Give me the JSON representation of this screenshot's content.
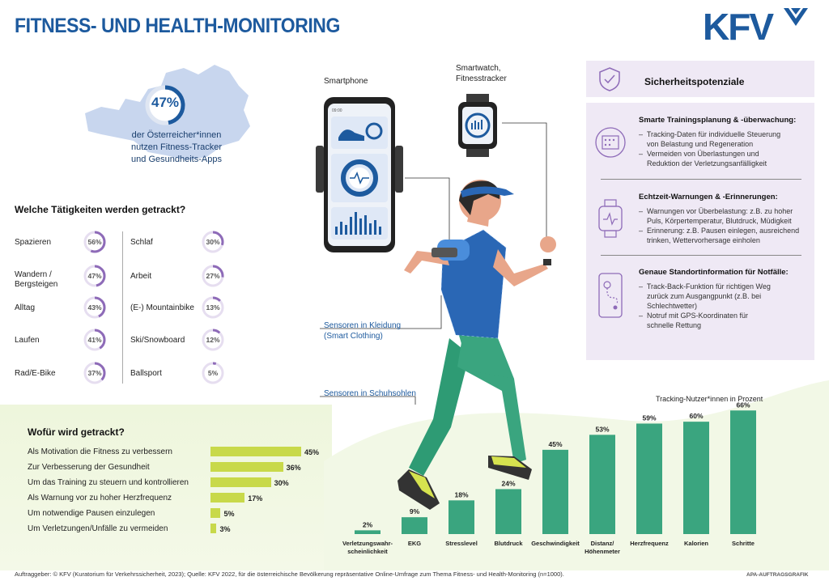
{
  "header": {
    "title": "FITNESS- UND HEALTH-MONITORING",
    "logo": "KFV"
  },
  "stat": {
    "percent": "47%",
    "percent_value": 0.47,
    "text_line1": "der Österreicher*innen",
    "text_line2": "nutzen Fitness-Tracker",
    "text_line3": "und Gesundheits-Apps"
  },
  "activities": {
    "heading": "Welche Tätigkeiten werden getrackt?",
    "left": [
      {
        "label": "Spazieren",
        "label2": "",
        "value": "56%",
        "pct": 56
      },
      {
        "label": "Wandern /",
        "label2": "Bergsteigen",
        "value": "47%",
        "pct": 47
      },
      {
        "label": "Alltag",
        "label2": "",
        "value": "43%",
        "pct": 43
      },
      {
        "label": "Laufen",
        "label2": "",
        "value": "41%",
        "pct": 41
      },
      {
        "label": "Rad/E-Bike",
        "label2": "",
        "value": "37%",
        "pct": 37
      }
    ],
    "right": [
      {
        "label": "Schlaf",
        "value": "30%",
        "pct": 30
      },
      {
        "label": "Arbeit",
        "value": "27%",
        "pct": 27
      },
      {
        "label": "(E-) Mountainbike",
        "value": "13%",
        "pct": 13
      },
      {
        "label": "Ski/Snowboard",
        "value": "12%",
        "pct": 12
      },
      {
        "label": "Ballsport",
        "value": "5%",
        "pct": 5
      }
    ]
  },
  "why": {
    "heading": "Wofür wird getrackt?",
    "items": [
      {
        "label": "Als Motivation die Fitness zu verbessern",
        "value": "45%",
        "pct": 45
      },
      {
        "label": "Zur Verbesserung der Gesundheit",
        "value": "36%",
        "pct": 36
      },
      {
        "label": "Um das Training zu steuern und kontrollieren",
        "value": "30%",
        "pct": 30
      },
      {
        "label": "Als Warnung vor zu hoher Herzfrequenz",
        "value": "17%",
        "pct": 17
      },
      {
        "label": "Um notwendige Pausen einzulegen",
        "value": "5%",
        "pct": 5
      },
      {
        "label": "Um Verletzungen/Unfälle zu vermeiden",
        "value": "3%",
        "pct": 3
      }
    ]
  },
  "devices": {
    "smartphone": "Smartphone",
    "smartwatch_line1": "Smartwatch,",
    "smartwatch_line2": "Fitnesstracker",
    "sensors_clothing_line1": "Sensoren in Kleidung",
    "sensors_clothing_line2": "(Smart Clothing)",
    "sensors_shoes": "Sensoren in Schuhsohlen",
    "phone_time": "09:00"
  },
  "safety": {
    "heading": "Sicherheitspotenziale",
    "sections": [
      {
        "title": "Smarte Trainingsplanung & -überwachung:",
        "items": [
          [
            "–  Tracking-Daten für individuelle Steuerung",
            "    von Belastung und Regeneration"
          ],
          [
            "–  Vermeiden von Überlastungen und",
            "    Reduktion der Verletzungsanfälligkeit"
          ]
        ]
      },
      {
        "title": "Echtzeit-Warnungen & -Erinnerungen:",
        "items": [
          [
            "–  Warnungen vor Überbelastung: z.B. zu hoher",
            "    Puls, Körpertemperatur, Blutdruck, Müdigkeit"
          ],
          [
            "–  Erinnerung: z.B. Pausen einlegen, ausreichend",
            "    trinken, Wettervorhersage einholen"
          ]
        ]
      },
      {
        "title": "Genaue Standortinformation für Notfälle:",
        "items": [
          [
            "–  Track-Back-Funktion für richtigen Weg",
            "    zurück zum Ausgangpunkt (z.B. bei",
            "    Schlechtwetter)"
          ],
          [
            "–  Notruf mit GPS-Koordinaten für",
            "    schnelle Rettung"
          ]
        ]
      }
    ]
  },
  "chart_data": {
    "type": "bar",
    "title": "Tracking-Nutzer*innen in Prozent",
    "categories": [
      "Verletzungswahr-scheinlichkeit",
      "EKG",
      "Stresslevel",
      "Blutdruck",
      "Geschwindigkeit",
      "Distanz/ Höhenmeter",
      "Herzfrequenz",
      "Kalorien",
      "Schritte"
    ],
    "category_lines": [
      [
        "Verletzungswahr-",
        "scheinlichkeit"
      ],
      [
        "EKG"
      ],
      [
        "Stresslevel"
      ],
      [
        "Blutdruck"
      ],
      [
        "Geschwindigkeit"
      ],
      [
        "Distanz/",
        "Höhenmeter"
      ],
      [
        "Herzfrequenz"
      ],
      [
        "Kalorien"
      ],
      [
        "Schritte"
      ]
    ],
    "values": [
      2,
      9,
      18,
      24,
      45,
      53,
      59,
      60,
      66
    ],
    "value_labels": [
      "2%",
      "9%",
      "18%",
      "24%",
      "45%",
      "53%",
      "59%",
      "60%",
      "66%"
    ],
    "ylim": [
      0,
      70
    ],
    "bar_color": "#3aa57f",
    "grid": false
  },
  "footer": {
    "source": "Auftraggeber: © KFV (Kuratorium für Verkehrssicherheit, 2023); Quelle: KFV 2022, für die österreichische Bevölkerung repräsentative Online-Umfrage zum Thema Fitness- und Health-Monitoring (n=1000).",
    "credit": "APA-AUFTRAGSGRAFIK"
  },
  "colors": {
    "brand_blue": "#1d5a9e",
    "ring_purple": "#8e6bb8",
    "bar_lime": "#c8d94a",
    "panel_lilac": "#efe9f5",
    "runner_green": "#3aa57f"
  }
}
